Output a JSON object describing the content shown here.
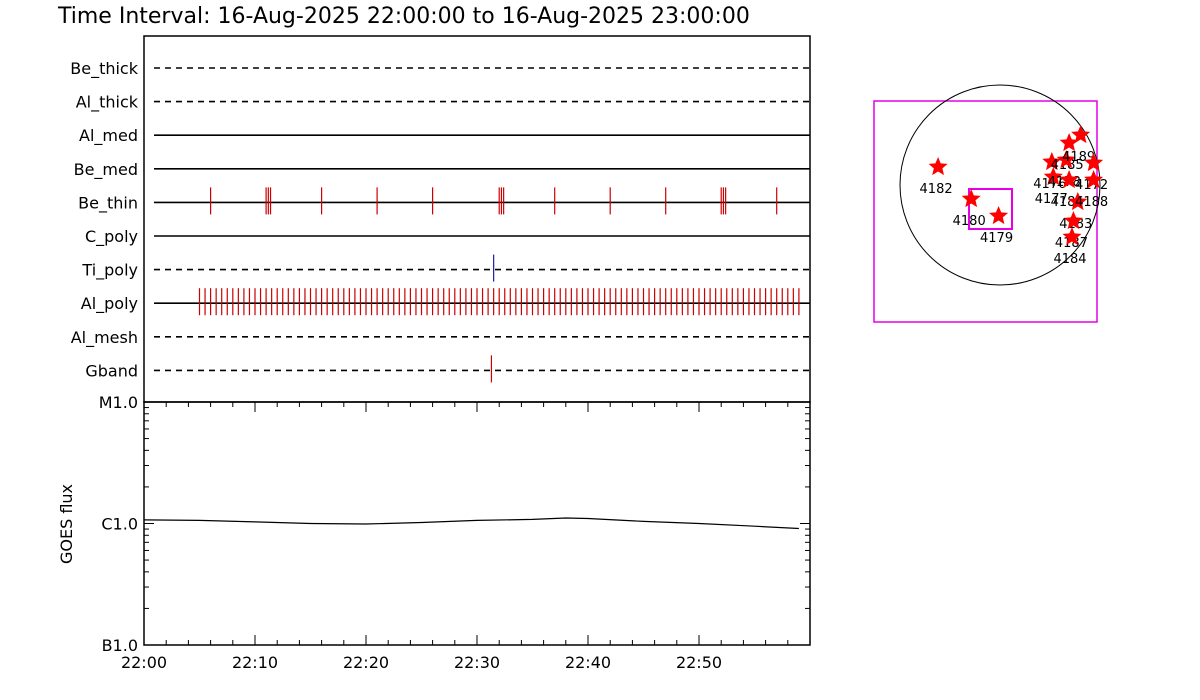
{
  "title": "Time Interval: 16-Aug-2025 22:00:00 to 16-Aug-2025 23:00:00",
  "colors": {
    "axis": "#000000",
    "event": "#cc0000",
    "ti_event": "#1a1a99",
    "box": "#e600e6",
    "star": "#ff0000"
  },
  "chart_data": [
    {
      "type": "line",
      "panel": "filter timeline",
      "x_range": [
        "22:00",
        "23:00"
      ],
      "rows": [
        {
          "name": "Be_thick",
          "style": "dashed",
          "events": []
        },
        {
          "name": "Al_thick",
          "style": "dashed",
          "events": []
        },
        {
          "name": "Al_med",
          "style": "solid",
          "events": []
        },
        {
          "name": "Be_med",
          "style": "solid",
          "events": []
        },
        {
          "name": "Be_thin",
          "style": "solid",
          "events": [
            "22:06",
            "22:11",
            "22:11.2",
            "22:11.4",
            "22:16",
            "22:21",
            "22:26",
            "22:32",
            "22:32.2",
            "22:32.4",
            "22:37",
            "22:42",
            "22:47",
            "22:52",
            "22:52.2",
            "22:52.4",
            "22:57"
          ]
        },
        {
          "name": "C_poly",
          "style": "solid",
          "events": []
        },
        {
          "name": "Ti_poly",
          "style": "dashed",
          "events": [
            "22:31.5"
          ]
        },
        {
          "name": "Al_poly",
          "style": "solid",
          "events": [
            "22:05-22:59, about every 0.5 min"
          ]
        },
        {
          "name": "Al_mesh",
          "style": "dashed",
          "events": []
        },
        {
          "name": "Gband",
          "style": "dashed",
          "events": [
            "22:31.3"
          ]
        }
      ]
    },
    {
      "type": "line",
      "panel": "GOES",
      "ylabel": "GOES flux",
      "yscale": "log",
      "yticks": [
        "B1.0",
        "C1.0",
        "M1.0"
      ],
      "ylim": [
        "B1.0",
        "M1.0"
      ],
      "xticks": [
        "22:00",
        "22:10",
        "22:20",
        "22:30",
        "22:40",
        "22:50"
      ],
      "x": [
        "22:00",
        "22:05",
        "22:10",
        "22:15",
        "22:20",
        "22:25",
        "22:30",
        "22:35",
        "22:38",
        "22:40",
        "22:45",
        "22:50",
        "22:55",
        "22:59"
      ],
      "y": [
        "C1.07",
        "C1.06",
        "C1.03",
        "C1.0",
        "C0.99",
        "C1.02",
        "C1.06",
        "C1.08",
        "C1.11",
        "C1.1",
        "C1.04",
        "C1.0",
        "C0.95",
        "C0.91"
      ]
    },
    {
      "type": "scatter",
      "panel": "active region map",
      "regions": [
        {
          "label": "4182",
          "x": -0.86,
          "y": 0.18
        },
        {
          "label": "4180",
          "x": -0.4,
          "y": -0.14
        },
        {
          "label": "4179",
          "x": -0.02,
          "y": -0.31
        },
        {
          "label": "4176",
          "x": 0.72,
          "y": 0.23
        },
        {
          "label": "4177",
          "x": 0.74,
          "y": 0.08
        },
        {
          "label": "4185",
          "x": 0.96,
          "y": 0.42
        },
        {
          "label": "4178",
          "x": 0.92,
          "y": 0.25
        },
        {
          "label": "4186",
          "x": 0.96,
          "y": 0.05
        },
        {
          "label": "4189",
          "x": 1.12,
          "y": 0.5
        },
        {
          "label": "4172",
          "x": 1.3,
          "y": 0.22
        },
        {
          "label": "4183",
          "x": 1.08,
          "y": -0.17
        },
        {
          "label": "4187",
          "x": 1.02,
          "y": -0.36
        },
        {
          "label": "4184",
          "x": 1.0,
          "y": -0.52
        },
        {
          "label": "4188",
          "x": 1.3,
          "y": 0.05
        }
      ]
    }
  ]
}
